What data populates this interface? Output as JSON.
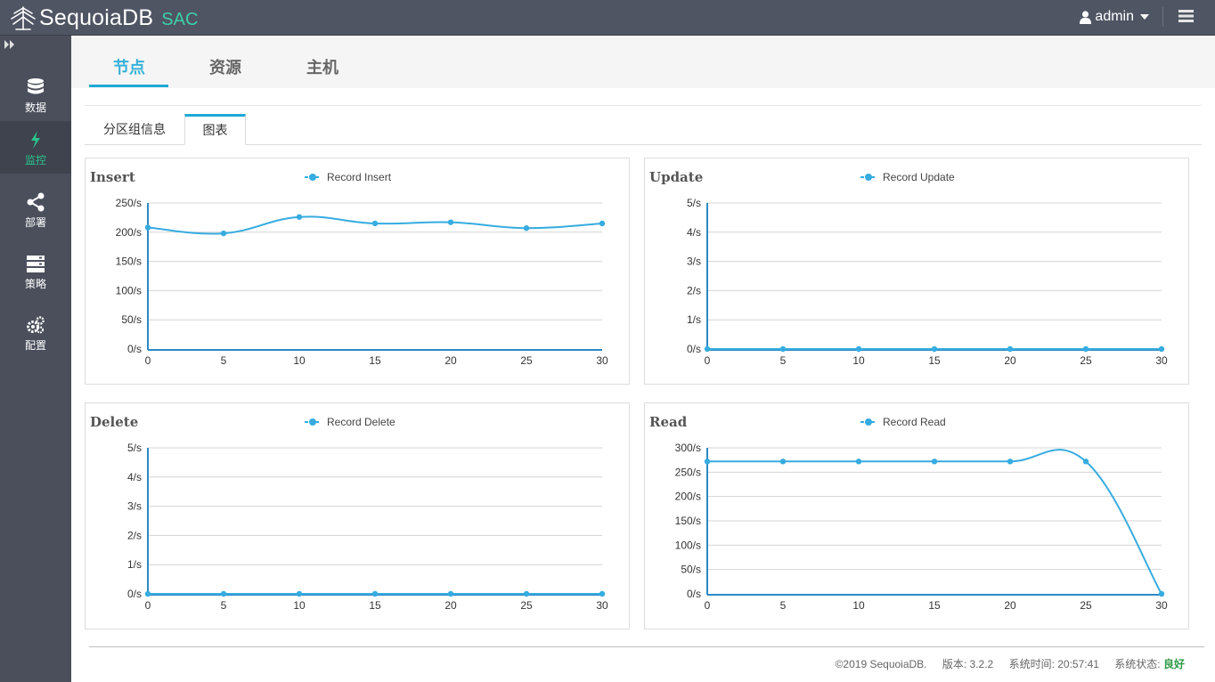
{
  "header": {
    "app_name": "SequoiaDB",
    "app_suffix": "SAC",
    "user": "admin"
  },
  "sidebar": {
    "items": [
      {
        "label": "数据",
        "icon": "database-icon"
      },
      {
        "label": "监控",
        "icon": "bolt-icon",
        "active": true
      },
      {
        "label": "部署",
        "icon": "share-icon"
      },
      {
        "label": "策略",
        "icon": "server-icon"
      },
      {
        "label": "配置",
        "icon": "gears-icon"
      }
    ]
  },
  "tabs": {
    "items": [
      "节点",
      "资源",
      "主机"
    ],
    "active": 0
  },
  "subtabs": {
    "items": [
      "分区组信息",
      "图表"
    ],
    "active": 1
  },
  "theme": {
    "accent": "#1fa9d6",
    "series": "#36ace0",
    "success": "#2e9a46"
  },
  "chart_data": [
    {
      "type": "line",
      "title": "Insert",
      "legend": "Record Insert",
      "x": [
        0,
        5,
        10,
        15,
        20,
        25,
        30
      ],
      "values": [
        208,
        198,
        226,
        215,
        217,
        207,
        215
      ],
      "y_ticks": [
        "0/s",
        "50/s",
        "100/s",
        "150/s",
        "200/s",
        "250/s"
      ],
      "ylim": [
        0,
        250
      ],
      "smooth": true
    },
    {
      "type": "line",
      "title": "Update",
      "legend": "Record Update",
      "x": [
        0,
        5,
        10,
        15,
        20,
        25,
        30
      ],
      "values": [
        0,
        0,
        0,
        0,
        0,
        0,
        0
      ],
      "y_ticks": [
        "0/s",
        "1/s",
        "2/s",
        "3/s",
        "4/s",
        "5/s"
      ],
      "ylim": [
        0,
        5
      ],
      "smooth": false
    },
    {
      "type": "line",
      "title": "Delete",
      "legend": "Record Delete",
      "x": [
        0,
        5,
        10,
        15,
        20,
        25,
        30
      ],
      "values": [
        0,
        0,
        0,
        0,
        0,
        0,
        0
      ],
      "y_ticks": [
        "0/s",
        "1/s",
        "2/s",
        "3/s",
        "4/s",
        "5/s"
      ],
      "ylim": [
        0,
        5
      ],
      "smooth": false
    },
    {
      "type": "line",
      "title": "Read",
      "legend": "Record Read",
      "x": [
        0,
        5,
        10,
        15,
        20,
        25,
        30
      ],
      "values": [
        272,
        272,
        272,
        272,
        272,
        272,
        0
      ],
      "y_ticks": [
        "0/s",
        "50/s",
        "100/s",
        "150/s",
        "200/s",
        "250/s",
        "300/s"
      ],
      "ylim": [
        0,
        300
      ],
      "smooth": true
    }
  ],
  "footer": {
    "copyright": "©2019 SequoiaDB.",
    "version": "版本: 3.2.2",
    "time": "系统时间: 20:57:41",
    "status_label": "系统状态:",
    "status_value": "良好"
  }
}
